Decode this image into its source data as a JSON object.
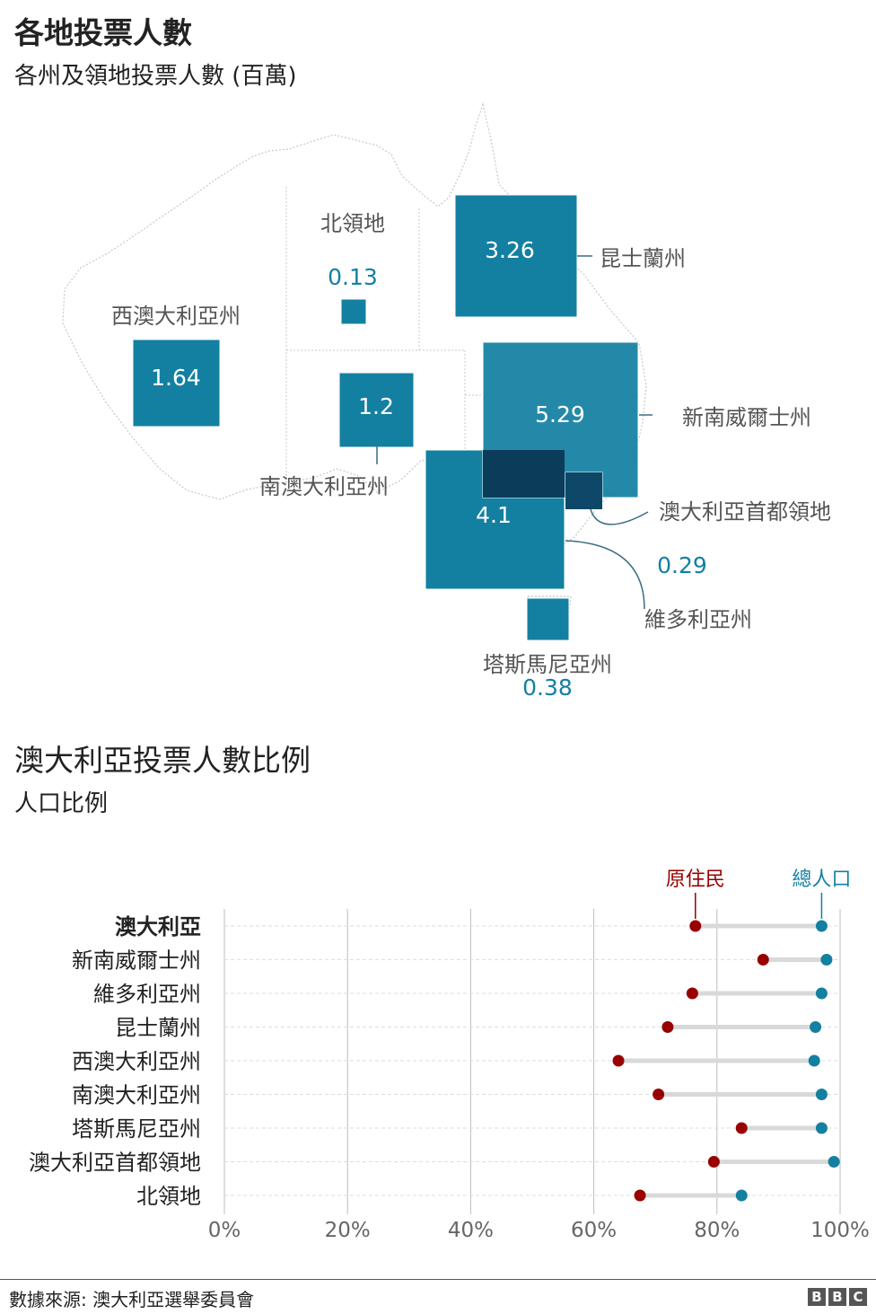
{
  "chart_data": [
    {
      "type": "proportional-squares-map",
      "title": "各地投票人數",
      "subtitle": "各州及領地投票人數 (百萬)",
      "regions": [
        {
          "name": "西澳大利亞州",
          "value": "1.64"
        },
        {
          "name": "北領地",
          "value": "0.13"
        },
        {
          "name": "南澳大利亞州",
          "value": "1.2"
        },
        {
          "name": "昆士蘭州",
          "value": "3.26"
        },
        {
          "name": "新南威爾士州",
          "value": "5.29"
        },
        {
          "name": "維多利亞州",
          "value": "4.1"
        },
        {
          "name": "澳大利亞首都領地",
          "value": "0.29"
        },
        {
          "name": "塔斯馬尼亞州",
          "value": "0.38"
        }
      ]
    },
    {
      "type": "dot-plot",
      "title": "澳大利亞投票人數比例",
      "subtitle": "人口比例",
      "legend": [
        "原住民",
        "總人口"
      ],
      "colors": {
        "indigenous": "#990000",
        "total": "#1380a1",
        "connector": "#d9d9d9"
      },
      "xlim": [
        0,
        100
      ],
      "ticks": [
        "0%",
        "20%",
        "40%",
        "60%",
        "80%",
        "100%"
      ],
      "categories": [
        "澳大利亞",
        "新南威爾士州",
        "維多利亞州",
        "昆士蘭州",
        "西澳大利亞州",
        "南澳大利亞州",
        "塔斯馬尼亞州",
        "澳大利亞首都領地",
        "北領地"
      ],
      "series": [
        {
          "name": "原住民",
          "values": [
            76.5,
            87.5,
            76,
            72,
            64,
            70.5,
            84,
            79.5,
            67.5
          ]
        },
        {
          "name": "總人口",
          "values": [
            97,
            97.8,
            97,
            96,
            95.8,
            97,
            97,
            99,
            84
          ]
        }
      ]
    }
  ],
  "footer": {
    "source": "數據來源: 澳大利亞選舉委員會",
    "logo": [
      "B",
      "B",
      "C"
    ]
  }
}
